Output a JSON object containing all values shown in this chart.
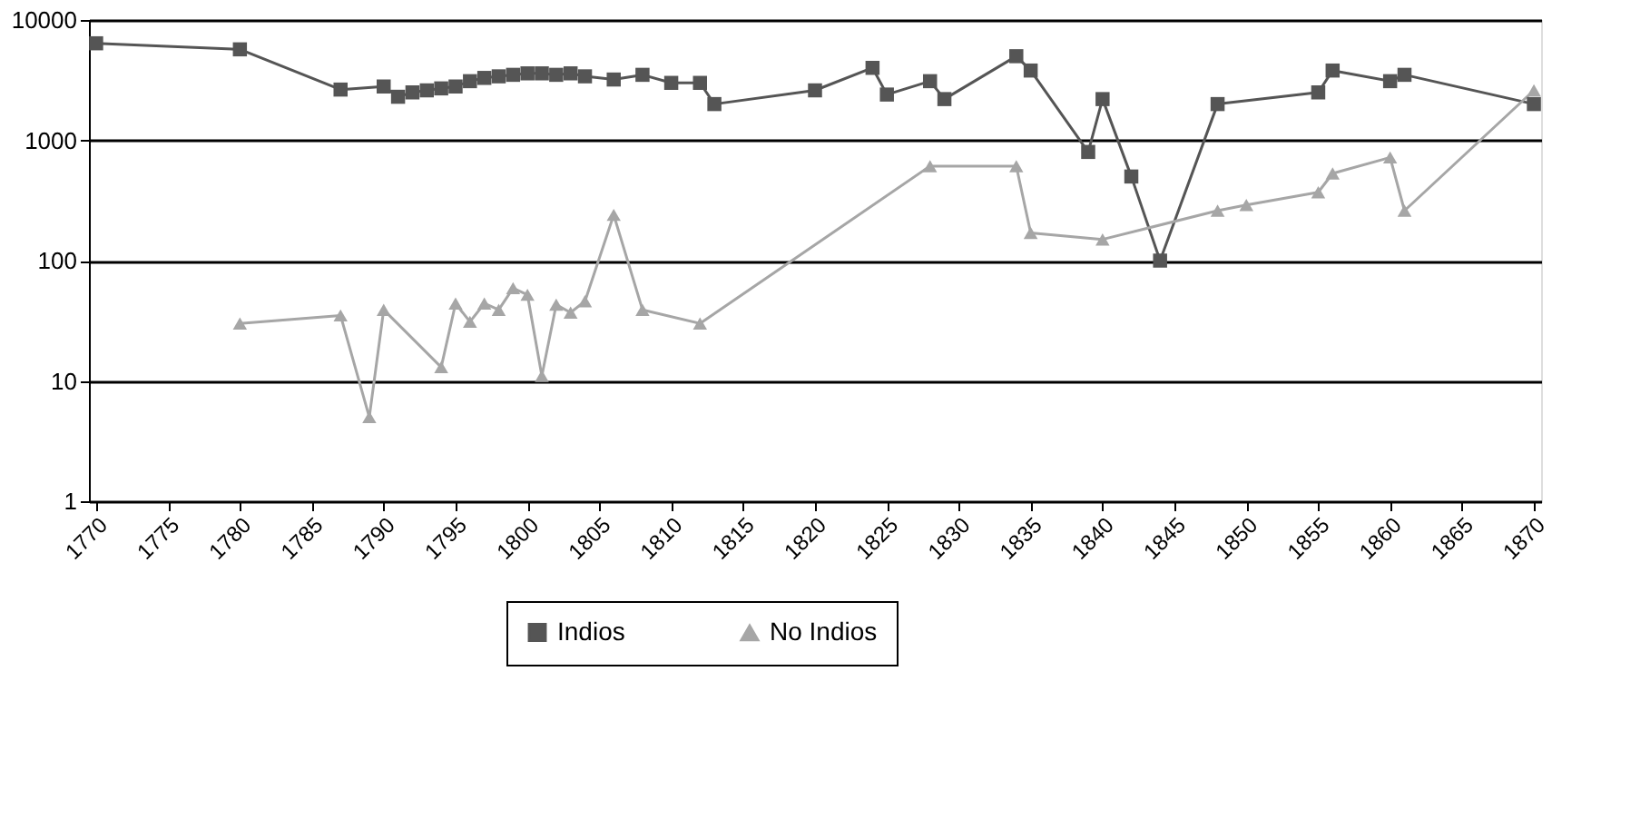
{
  "chart_data": {
    "type": "line",
    "xlim": [
      1769.5,
      1870.5
    ],
    "xticks": [
      1770,
      1775,
      1780,
      1785,
      1790,
      1795,
      1800,
      1805,
      1810,
      1815,
      1820,
      1825,
      1830,
      1835,
      1840,
      1845,
      1850,
      1855,
      1860,
      1865,
      1870
    ],
    "ylim": [
      1,
      10000
    ],
    "yticks": [
      1,
      10,
      100,
      1000,
      10000
    ],
    "log": "y",
    "grid": "y",
    "legend": "bottom",
    "marker": "square",
    "line_style": "solid",
    "series": [
      {
        "name": "Indios",
        "color": "#555555",
        "marker": "square",
        "x": [
          1770,
          1780,
          1787,
          1790,
          1791,
          1792,
          1793,
          1794,
          1795,
          1796,
          1797,
          1798,
          1799,
          1800,
          1801,
          1802,
          1803,
          1804,
          1806,
          1808,
          1810,
          1812,
          1813,
          1820,
          1824,
          1825,
          1828,
          1829,
          1834,
          1835,
          1839,
          1840,
          1842,
          1844,
          1848,
          1855,
          1856,
          1860,
          1861,
          1870
        ],
        "values": [
          6400,
          5700,
          2640,
          2800,
          2300,
          2500,
          2600,
          2700,
          2800,
          3100,
          3300,
          3400,
          3500,
          3600,
          3600,
          3500,
          3600,
          3400,
          3200,
          3500,
          3000,
          3000,
          2000,
          2600,
          4000,
          2400,
          3100,
          2200,
          5000,
          3800,
          800,
          2200,
          500,
          100,
          2000,
          2500,
          3800,
          3100,
          3500,
          2000
        ]
      },
      {
        "name": "No Indios",
        "color": "#a6a6a6",
        "marker": "triangle",
        "x": [
          1780,
          1787,
          1789,
          1790,
          1794,
          1795,
          1796,
          1797,
          1798,
          1799,
          1800,
          1801,
          1802,
          1803,
          1804,
          1806,
          1808,
          1812,
          1828,
          1834,
          1835,
          1840,
          1848,
          1850,
          1855,
          1856,
          1860,
          1861,
          1870
        ],
        "values": [
          30,
          35,
          5,
          39,
          13,
          44,
          31,
          44,
          39,
          59,
          52,
          11,
          43,
          37,
          46,
          240,
          39,
          30,
          610,
          610,
          170,
          150,
          260,
          290,
          370,
          530,
          720,
          260,
          2600
        ]
      }
    ]
  }
}
